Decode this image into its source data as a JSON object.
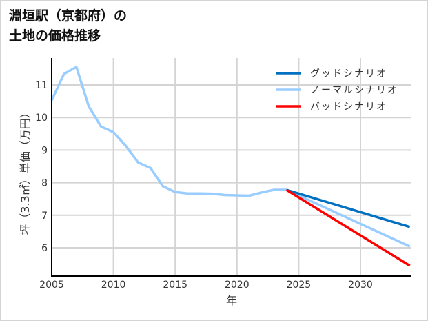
{
  "title": {
    "line1": "淵垣駅（京都府）の",
    "line2": "土地の価格推移"
  },
  "chart_data": {
    "type": "line",
    "title": "淵垣駅（京都府）の土地の価格推移",
    "xlabel": "年",
    "ylabel": "坪（3.3㎡）単価（万円）",
    "xlim": [
      2005,
      2034
    ],
    "ylim": [
      5.15,
      11.85
    ],
    "x_ticks": [
      "2005",
      "2010",
      "2015",
      "2020",
      "2025",
      "2030"
    ],
    "y_ticks": [
      "6",
      "7",
      "8",
      "9",
      "10",
      "11"
    ],
    "grid": true,
    "legend_position": "upper right",
    "series": [
      {
        "name": "ノーマルシナリオ",
        "color": "#99ccff",
        "x": [
          2005,
          2006,
          2007,
          2008,
          2009,
          2010,
          2011,
          2012,
          2013,
          2014,
          2015,
          2016,
          2017,
          2018,
          2019,
          2020,
          2021,
          2022,
          2023,
          2024,
          2034
        ],
        "values": [
          10.53,
          11.34,
          11.55,
          10.34,
          9.72,
          9.55,
          9.13,
          8.62,
          8.45,
          7.89,
          7.71,
          7.67,
          7.67,
          7.66,
          7.62,
          7.61,
          7.6,
          7.7,
          7.78,
          7.78,
          6.04
        ]
      },
      {
        "name": "グッドシナリオ",
        "color": "#0070c0",
        "x": [
          2024,
          2034
        ],
        "values": [
          7.78,
          6.64
        ]
      },
      {
        "name": "バッドシナリオ",
        "color": "#ff0000",
        "x": [
          2024,
          2034
        ],
        "values": [
          7.78,
          5.45
        ]
      }
    ]
  },
  "legend": {
    "items": [
      {
        "label": "グッドシナリオ",
        "color": "#0070c0"
      },
      {
        "label": "ノーマルシナリオ",
        "color": "#99ccff"
      },
      {
        "label": "バッドシナリオ",
        "color": "#ff0000"
      }
    ]
  }
}
